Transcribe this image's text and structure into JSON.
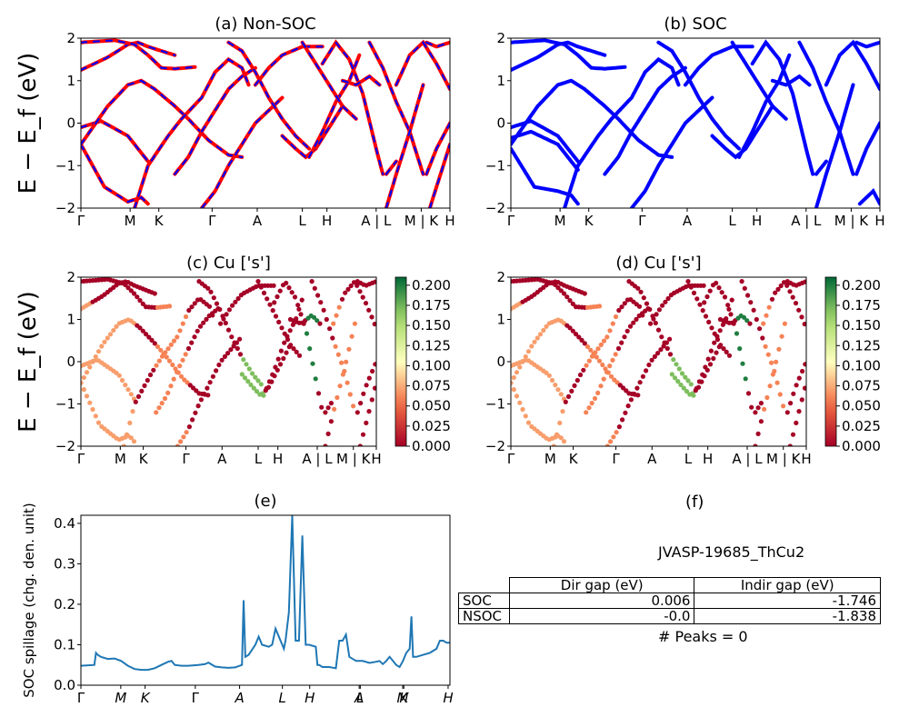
{
  "chart_data": [
    {
      "type": "line",
      "title": "(a) Non-SOC",
      "ylabel": "E − E_f (eV)",
      "ylim": [
        -2,
        2
      ],
      "yticks": [
        "2",
        "1",
        "0",
        "−1",
        "−2"
      ],
      "xticks": [
        "Γ",
        "M",
        "K",
        "Γ",
        "A",
        "L",
        "H",
        "A | L",
        "M | K",
        "H"
      ],
      "series": [
        {
          "color": "#ff0000",
          "style": "solid"
        },
        {
          "color": "#0000ff",
          "style": "dashed"
        }
      ],
      "bands": [
        {
          "x": [
            0,
            4,
            7,
            8.5,
            10,
            14
          ],
          "y": [
            1.25,
            1.55,
            1.85,
            1.9,
            1.8,
            1.6
          ]
        },
        {
          "x": [
            0,
            3,
            7,
            9,
            10
          ],
          "y": [
            -0.1,
            0.05,
            -0.3,
            -0.7,
            -0.9
          ]
        },
        {
          "x": [
            0,
            3.5,
            7,
            9,
            10
          ],
          "y": [
            -0.5,
            -1.5,
            -1.85,
            -1.75,
            -1.9
          ]
        },
        {
          "x": [
            0,
            5,
            8,
            10,
            12,
            14,
            17
          ],
          "y": [
            1.9,
            1.95,
            1.85,
            1.6,
            1.3,
            1.28,
            1.32
          ]
        },
        {
          "x": [
            0,
            4,
            7,
            9,
            11,
            14,
            16,
            19,
            22,
            24
          ],
          "y": [
            -0.5,
            0.4,
            0.9,
            1.0,
            0.8,
            0.4,
            0.1,
            -0.4,
            -0.75,
            -0.8
          ]
        },
        {
          "x": [
            8,
            10,
            13,
            15,
            18,
            20,
            22,
            24,
            25
          ],
          "y": [
            -2,
            -1.0,
            -0.3,
            0.1,
            0.6,
            1.2,
            1.5,
            1.3,
            0.9
          ]
        },
        {
          "x": [
            14,
            16,
            18,
            20,
            22,
            24,
            26
          ],
          "y": [
            -1.2,
            -0.8,
            -0.2,
            0.3,
            0.8,
            1.1,
            1.3
          ]
        },
        {
          "x": [
            18,
            20,
            22,
            24,
            26,
            28,
            30
          ],
          "y": [
            -2,
            -1.6,
            -1.0,
            -0.5,
            0,
            0.3,
            0.6
          ]
        },
        {
          "x": [
            22,
            24,
            26,
            28,
            30,
            32,
            34
          ],
          "y": [
            1.9,
            1.7,
            1.2,
            0.6,
            0.1,
            -0.3,
            -0.6
          ]
        },
        {
          "x": [
            26,
            28,
            30,
            33,
            36
          ],
          "y": [
            0.9,
            1.3,
            1.6,
            1.8,
            1.8
          ]
        },
        {
          "x": [
            30,
            32,
            33.5,
            35,
            37,
            39
          ],
          "y": [
            -0.3,
            -0.6,
            -0.8,
            -0.6,
            -0.1,
            0.4
          ]
        },
        {
          "x": [
            34,
            36,
            38,
            40,
            41.5
          ],
          "y": [
            -0.8,
            -0.2,
            0.5,
            1.0,
            1.6
          ]
        },
        {
          "x": [
            33,
            35,
            37,
            39,
            41
          ],
          "y": [
            1.9,
            1.4,
            0.9,
            0.4,
            0.1
          ]
        },
        {
          "x": [
            36,
            38,
            40,
            42,
            44,
            45
          ],
          "y": [
            1.4,
            1.9,
            1.5,
            0.7,
            -0.6,
            -1.2
          ]
        },
        {
          "x": [
            39,
            41,
            43,
            44.5
          ],
          "y": [
            1.0,
            0.9,
            1.1,
            0.9
          ]
        },
        {
          "x": [
            43,
            45,
            47,
            49,
            51
          ],
          "y": [
            1.9,
            1.3,
            0.5,
            -0.2,
            -1.2
          ]
        },
        {
          "x": [
            45.5,
            47,
            49,
            51
          ],
          "y": [
            -2,
            -1.2,
            -0.2,
            0.9
          ]
        },
        {
          "x": [
            47,
            49,
            51,
            53,
            55
          ],
          "y": [
            0.9,
            1.6,
            1.9,
            1.4,
            0.8
          ]
        },
        {
          "x": [
            45.5,
            47
          ],
          "y": [
            -1.2,
            -0.9
          ]
        },
        {
          "x": [
            51.5,
            53,
            55
          ],
          "y": [
            -1.2,
            -0.6,
            0.0
          ]
        },
        {
          "x": [
            52,
            54,
            55
          ],
          "y": [
            -2,
            -1.0,
            -0.5
          ]
        },
        {
          "x": [
            51.5,
            53,
            55
          ],
          "y": [
            1.9,
            1.8,
            1.9
          ]
        }
      ]
    },
    {
      "type": "line",
      "title": "(b) SOC",
      "ylim": [
        -2,
        2
      ],
      "yticks": [
        "2",
        "1",
        "0",
        "−1",
        "−2"
      ],
      "xticks": [
        "Γ",
        "M",
        "K",
        "Γ",
        "A",
        "L",
        "H",
        "A | L",
        "M | K",
        "H"
      ],
      "series": [
        {
          "color": "#0000ff",
          "style": "solid"
        }
      ],
      "bands": [
        {
          "x": [
            0,
            4,
            7,
            8.5,
            10,
            14
          ],
          "y": [
            1.25,
            1.55,
            1.85,
            1.9,
            1.8,
            1.6
          ]
        },
        {
          "x": [
            0,
            3,
            7,
            9,
            10
          ],
          "y": [
            -0.1,
            0.05,
            -0.3,
            -0.7,
            -0.9
          ]
        },
        {
          "x": [
            0,
            3,
            7,
            9,
            10
          ],
          "y": [
            -0.35,
            -0.2,
            -0.5,
            -0.9,
            -1.1
          ]
        },
        {
          "x": [
            0,
            3.5,
            7,
            9,
            10
          ],
          "y": [
            -0.6,
            -1.5,
            -1.6,
            -1.7,
            -1.9
          ]
        },
        {
          "x": [
            0,
            5,
            8,
            10,
            12,
            14,
            17
          ],
          "y": [
            1.9,
            1.95,
            1.85,
            1.6,
            1.3,
            1.28,
            1.32
          ]
        },
        {
          "x": [
            0,
            4,
            7,
            9,
            11,
            14,
            16,
            19,
            22,
            24
          ],
          "y": [
            -0.5,
            0.4,
            0.9,
            1.0,
            0.8,
            0.4,
            0.1,
            -0.4,
            -0.75,
            -0.8
          ]
        },
        {
          "x": [
            8,
            10,
            13,
            15,
            18,
            20,
            22,
            24,
            25
          ],
          "y": [
            -2,
            -1.0,
            -0.3,
            0.1,
            0.6,
            1.2,
            1.5,
            1.3,
            0.9
          ]
        },
        {
          "x": [
            14,
            16,
            18,
            20,
            22,
            24,
            26
          ],
          "y": [
            -1.2,
            -0.8,
            -0.2,
            0.3,
            0.8,
            1.1,
            1.3
          ]
        },
        {
          "x": [
            18,
            20,
            22,
            24,
            26,
            28,
            30
          ],
          "y": [
            -2,
            -1.6,
            -1.0,
            -0.5,
            0,
            0.3,
            0.6
          ]
        },
        {
          "x": [
            22,
            24,
            26,
            28,
            30,
            32,
            34
          ],
          "y": [
            1.9,
            1.7,
            1.2,
            0.6,
            0.1,
            -0.3,
            -0.6
          ]
        },
        {
          "x": [
            26,
            28,
            30,
            33,
            36
          ],
          "y": [
            0.9,
            1.3,
            1.6,
            1.8,
            1.8
          ]
        },
        {
          "x": [
            30,
            32,
            33.5,
            35,
            37,
            39
          ],
          "y": [
            -0.3,
            -0.6,
            -0.8,
            -0.6,
            -0.1,
            0.4
          ]
        },
        {
          "x": [
            34,
            36,
            38,
            40,
            41.5
          ],
          "y": [
            -0.8,
            -0.2,
            0.5,
            1.0,
            1.6
          ]
        },
        {
          "x": [
            33,
            35,
            37,
            39,
            41
          ],
          "y": [
            1.9,
            1.4,
            0.9,
            0.4,
            0.1
          ]
        },
        {
          "x": [
            36,
            38,
            40,
            42,
            44,
            45
          ],
          "y": [
            1.4,
            1.9,
            1.5,
            0.7,
            -0.6,
            -1.2
          ]
        },
        {
          "x": [
            39,
            41,
            43,
            44.5
          ],
          "y": [
            1.0,
            0.9,
            1.1,
            0.9
          ]
        },
        {
          "x": [
            43,
            45,
            47,
            49,
            51
          ],
          "y": [
            1.9,
            1.3,
            0.5,
            -0.2,
            -1.2
          ]
        },
        {
          "x": [
            45.5,
            47,
            49,
            51
          ],
          "y": [
            -2,
            -1.2,
            -0.2,
            0.9
          ]
        },
        {
          "x": [
            47,
            49,
            51,
            53,
            55
          ],
          "y": [
            0.9,
            1.6,
            1.9,
            1.4,
            0.8
          ]
        },
        {
          "x": [
            45.5,
            47
          ],
          "y": [
            -1.2,
            -0.9
          ]
        },
        {
          "x": [
            51.5,
            53,
            55
          ],
          "y": [
            -1.2,
            -0.6,
            0.0
          ]
        },
        {
          "x": [
            52,
            54,
            55
          ],
          "y": [
            -1.9,
            -1.6,
            -1.9
          ]
        },
        {
          "x": [
            51.5,
            53,
            55
          ],
          "y": [
            1.9,
            1.8,
            1.9
          ]
        }
      ]
    },
    {
      "type": "scatter",
      "title": "(c)  Cu ['s']",
      "ylabel": "E − E_f (eV)",
      "ylim": [
        -2,
        2
      ],
      "yticks": [
        "2",
        "1",
        "0",
        "−1",
        "−2"
      ],
      "xticks": [
        "Γ",
        "M",
        "K",
        "Γ",
        "A",
        "L",
        "H",
        "A | L",
        "M | K",
        "H"
      ],
      "colorbar": {
        "min": 0.0,
        "max": 0.21,
        "ticks": [
          "0.200",
          "0.175",
          "0.150",
          "0.125",
          "0.100",
          "0.075",
          "0.050",
          "0.025",
          "0.000"
        ],
        "colormap": "RdYlGn"
      },
      "weight_range": [
        0.0,
        0.21
      ],
      "highlights": [
        {
          "x0": 0,
          "x1": 10,
          "w": 0.07
        },
        {
          "x0": 14,
          "x1": 20,
          "w": 0.06
        },
        {
          "x0": 30,
          "x1": 34,
          "w": 0.17
        },
        {
          "x0": 42,
          "x1": 44,
          "w": 0.2
        },
        {
          "x0": 47,
          "x1": 51,
          "w": 0.06
        }
      ]
    },
    {
      "type": "scatter",
      "title": "(d) Cu ['s']",
      "ylim": [
        -2,
        2
      ],
      "yticks": [
        "2",
        "1",
        "0",
        "−1",
        "−2"
      ],
      "xticks": [
        "Γ",
        "M",
        "K",
        "Γ",
        "A",
        "L",
        "H",
        "A | L",
        "M | K",
        "H"
      ],
      "colorbar": {
        "min": 0.0,
        "max": 0.21,
        "ticks": [
          "0.200",
          "0.175",
          "0.150",
          "0.125",
          "0.100",
          "0.075",
          "0.050",
          "0.025",
          "0.000"
        ],
        "colormap": "RdYlGn"
      },
      "weight_range": [
        0.0,
        0.21
      ],
      "highlights": [
        {
          "x0": 0,
          "x1": 10,
          "w": 0.07
        },
        {
          "x0": 14,
          "x1": 20,
          "w": 0.06
        },
        {
          "x0": 30,
          "x1": 34,
          "w": 0.17
        },
        {
          "x0": 42,
          "x1": 44,
          "w": 0.2
        },
        {
          "x0": 47,
          "x1": 51,
          "w": 0.06
        }
      ]
    },
    {
      "type": "line",
      "title": "(e)",
      "ylabel": "SOC spillage (chg. den. unit)",
      "ylim": [
        0,
        0.42
      ],
      "yticks": [
        "0.0",
        "0.1",
        "0.2",
        "0.3",
        "0.4"
      ],
      "xticks": [
        "Γ",
        "M",
        "K",
        "Γ",
        "A",
        "L",
        "H",
        "A",
        "L",
        "M",
        "K",
        "H"
      ],
      "color": "#1f77b4",
      "x": [
        0,
        4,
        4.5,
        5,
        6,
        8,
        10,
        12,
        14,
        16,
        18,
        20,
        22,
        24,
        26,
        27,
        28,
        30,
        32,
        35,
        37,
        38,
        40,
        42,
        44,
        46,
        48,
        48.5,
        49,
        50,
        52,
        53,
        54,
        56,
        57,
        58,
        60,
        60.5,
        61,
        62,
        63,
        64,
        65,
        66,
        67,
        68,
        70,
        70.5,
        71,
        72,
        74,
        76,
        77,
        78,
        79,
        80,
        82,
        84,
        86,
        88,
        89,
        90,
        91,
        92,
        93,
        94,
        95,
        96,
        97,
        98,
        98.5,
        99,
        100,
        102,
        104,
        106,
        107,
        108,
        109,
        110
      ],
      "y": [
        0.048,
        0.05,
        0.08,
        0.075,
        0.07,
        0.065,
        0.066,
        0.06,
        0.048,
        0.04,
        0.038,
        0.038,
        0.042,
        0.05,
        0.058,
        0.06,
        0.05,
        0.048,
        0.048,
        0.05,
        0.052,
        0.056,
        0.046,
        0.044,
        0.043,
        0.044,
        0.05,
        0.21,
        0.07,
        0.075,
        0.1,
        0.12,
        0.1,
        0.095,
        0.1,
        0.14,
        0.1,
        0.09,
        0.11,
        0.18,
        0.42,
        0.11,
        0.11,
        0.37,
        0.1,
        0.1,
        0.095,
        0.05,
        0.05,
        0.045,
        0.045,
        0.042,
        0.11,
        0.11,
        0.125,
        0.07,
        0.06,
        0.06,
        0.055,
        0.058,
        0.06,
        0.052,
        0.06,
        0.07,
        0.06,
        0.05,
        0.045,
        0.06,
        0.08,
        0.09,
        0.17,
        0.07,
        0.07,
        0.075,
        0.08,
        0.09,
        0.11,
        0.11,
        0.105,
        0.105
      ]
    }
  ],
  "panel_f": {
    "title": "(f)",
    "material": "JVASP-19685_ThCu2",
    "table": {
      "headers": [
        "Dir gap (eV)",
        "Indir gap (eV)"
      ],
      "rows": [
        {
          "label": "SOC",
          "dir": "0.006",
          "indir": "-1.746"
        },
        {
          "label": "NSOC",
          "dir": "-0.0",
          "indir": "-1.838"
        }
      ]
    },
    "peaks": "# Peaks = 0"
  }
}
